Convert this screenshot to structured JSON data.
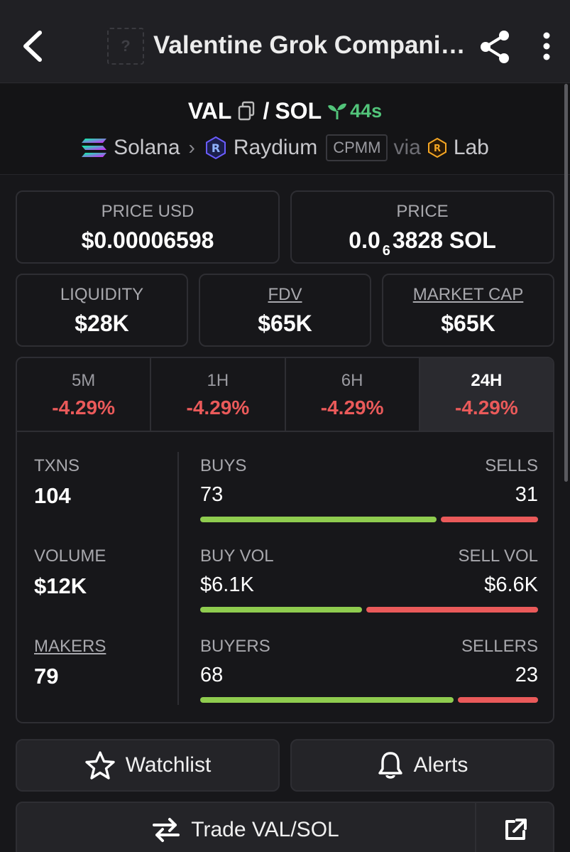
{
  "header": {
    "title": "Valentine Grok Companion",
    "token_placeholder": "?"
  },
  "pair": {
    "base": "VAL",
    "separator": "/",
    "quote": "SOL",
    "age": "44s",
    "chain": "Solana",
    "dex": "Raydium",
    "pool_type": "CPMM",
    "via": "via",
    "launchpad": "Lab"
  },
  "stats": {
    "price_usd_label": "PRICE USD",
    "price_usd": "$0.00006598",
    "price_label": "PRICE",
    "price_prefix": "0.0",
    "price_zeros": "6",
    "price_suffix": "3828 SOL",
    "liquidity_label": "LIQUIDITY",
    "liquidity": "$28K",
    "fdv_label": "FDV",
    "fdv": "$65K",
    "mcap_label": "MARKET CAP",
    "mcap": "$65K"
  },
  "timeframes": [
    {
      "label": "5M",
      "change": "-4.29%"
    },
    {
      "label": "1H",
      "change": "-4.29%"
    },
    {
      "label": "6H",
      "change": "-4.29%"
    },
    {
      "label": "24H",
      "change": "-4.29%"
    }
  ],
  "activity": {
    "txns_label": "TXNS",
    "txns": "104",
    "volume_label": "VOLUME",
    "volume": "$12K",
    "makers_label": "MAKERS",
    "makers": "79",
    "buys_label": "BUYS",
    "buys": "73",
    "sells_label": "SELLS",
    "sells": "31",
    "buy_vol_label": "BUY VOL",
    "buy_vol": "$6.1K",
    "sell_vol_label": "SELL VOL",
    "sell_vol": "$6.6K",
    "buyers_label": "BUYERS",
    "buyers": "68",
    "sellers_label": "SELLERS",
    "sellers": "23",
    "buys_fraction": 0.7,
    "buy_vol_fraction": 0.48,
    "buyers_fraction": 0.75
  },
  "actions": {
    "watchlist_label": "Watchlist",
    "alerts_label": "Alerts",
    "trade_label": "Trade VAL/SOL"
  },
  "colors": {
    "up": "#8fcc4f",
    "down": "#ea5a5a",
    "age": "#52c47a"
  }
}
